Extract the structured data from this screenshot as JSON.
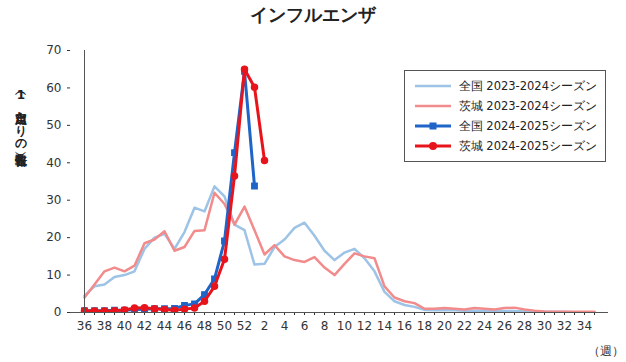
{
  "chart_data": {
    "type": "line",
    "title": "インフルエンザ",
    "y_label": "（1定点当たりの報告数）",
    "x_label": "（週）",
    "categories": [
      "36",
      null,
      "38",
      null,
      "40",
      null,
      "42",
      null,
      "44",
      null,
      "46",
      null,
      "48",
      null,
      "50",
      null,
      "52",
      null,
      "2",
      null,
      "4",
      null,
      "6",
      null,
      "8",
      null,
      "10",
      null,
      "12",
      null,
      "14",
      null,
      "16",
      null,
      "18",
      null,
      "20",
      null,
      "22",
      null,
      "24",
      null,
      "26",
      null,
      "28",
      null,
      "30",
      null,
      "32",
      null,
      "34",
      null
    ],
    "ylim": [
      0,
      70
    ],
    "yticks": [
      0,
      10,
      20,
      30,
      40,
      50,
      60,
      70
    ],
    "grid": false,
    "legend": "top-right",
    "series": [
      {
        "name": "全国 2023-2024シーズン",
        "color": "#9dc3e6",
        "marker": "none",
        "values": [
          4.5,
          7,
          7.5,
          9.5,
          10,
          11,
          17,
          20,
          21,
          17,
          21.5,
          28,
          27,
          33.7,
          31,
          23.5,
          22,
          12.8,
          13,
          17.5,
          19.5,
          22.6,
          24,
          20.5,
          16.5,
          14,
          16,
          17,
          14.5,
          11,
          5.5,
          3,
          2,
          1.5,
          0.7,
          0.6,
          0.6,
          0.6,
          0.5,
          0.5,
          0.5,
          0.4,
          0.4,
          0.4,
          0.3,
          0.2,
          0.2,
          0.2,
          0.2,
          0.1,
          0.1,
          0.1
        ]
      },
      {
        "name": "茨城 2023-2024シーズン",
        "color": "#f28b8b",
        "marker": "none",
        "values": [
          4,
          7.5,
          11,
          12,
          11,
          12.5,
          18.5,
          19.5,
          21.7,
          16.5,
          17.5,
          21.8,
          22,
          32,
          29,
          23.5,
          28.3,
          22,
          15.5,
          18,
          15,
          14,
          13.5,
          14.8,
          12,
          10,
          13,
          15.8,
          15,
          14.5,
          7,
          4,
          3,
          2.5,
          1,
          1,
          1.2,
          1,
          0.8,
          1.2,
          1,
          0.8,
          1.2,
          1.3,
          0.8,
          0.5,
          0.3,
          0.2,
          0.2,
          0.2,
          0.2,
          0.2
        ]
      },
      {
        "name": "全国 2024-2025シーズン",
        "color": "#1f64c8",
        "marker": "square",
        "values": [
          0.5,
          0.5,
          0.5,
          0.6,
          0.6,
          0.8,
          0.9,
          1,
          1,
          1.1,
          1.9,
          2.3,
          4.8,
          9,
          19.1,
          42.7,
          64.4,
          33.8,
          null,
          null,
          null,
          null,
          null,
          null,
          null,
          null,
          null,
          null,
          null,
          null,
          null,
          null,
          null,
          null,
          null,
          null,
          null,
          null,
          null,
          null,
          null,
          null,
          null,
          null,
          null,
          null,
          null,
          null,
          null,
          null,
          null,
          null
        ]
      },
      {
        "name": "茨城 2024-2025シーズン",
        "color": "#e8141c",
        "marker": "circle",
        "values": [
          0.5,
          0.4,
          0.4,
          0.5,
          0.7,
          1.2,
          1.3,
          1,
          0.8,
          0.6,
          0.9,
          1.2,
          3,
          7,
          14.2,
          36.5,
          65,
          60.2,
          40.6,
          null,
          null,
          null,
          null,
          null,
          null,
          null,
          null,
          null,
          null,
          null,
          null,
          null,
          null,
          null,
          null,
          null,
          null,
          null,
          null,
          null,
          null,
          null,
          null,
          null,
          null,
          null,
          null,
          null,
          null,
          null,
          null,
          null
        ]
      }
    ]
  }
}
